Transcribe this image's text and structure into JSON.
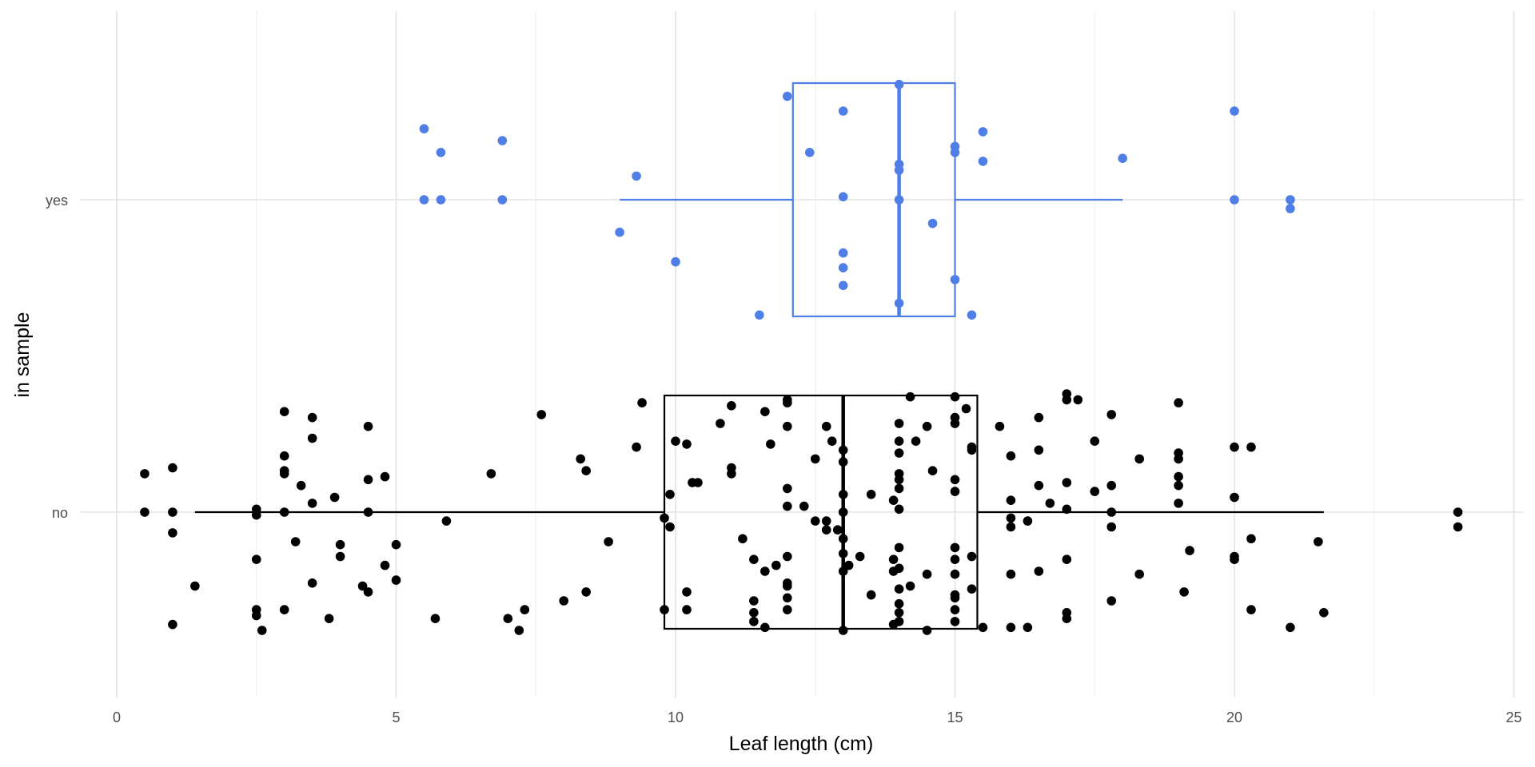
{
  "chart_data": {
    "type": "boxplot-jitter",
    "xlabel": "Leaf length (cm)",
    "ylabel": "in sample",
    "xlim": [
      0,
      25
    ],
    "x_ticks": [
      0,
      5,
      10,
      15,
      20,
      25
    ],
    "categories": [
      "no",
      "yes"
    ],
    "grid": true,
    "colors": {
      "no": "#000000",
      "yes": "#4f7fe6"
    },
    "boxes": [
      {
        "category": "no",
        "whisker_low": 1.4,
        "q1": 9.8,
        "median": 13.0,
        "q3": 15.4,
        "whisker_high": 21.6
      },
      {
        "category": "yes",
        "whisker_low": 9.0,
        "q1": 12.1,
        "median": 14.0,
        "q3": 15.0,
        "whisker_high": 18.0
      }
    ],
    "points": {
      "yes": [
        {
          "x": 5.5,
          "j": 0.24
        },
        {
          "x": 5.5,
          "j": 0.0
        },
        {
          "x": 5.8,
          "j": 0.16
        },
        {
          "x": 5.8,
          "j": 0.0
        },
        {
          "x": 6.9,
          "j": 0.2
        },
        {
          "x": 6.9,
          "j": 0.0
        },
        {
          "x": 9.0,
          "j": -0.11
        },
        {
          "x": 9.3,
          "j": 0.08
        },
        {
          "x": 10.0,
          "j": -0.21
        },
        {
          "x": 11.5,
          "j": -0.39
        },
        {
          "x": 12.0,
          "j": 0.35
        },
        {
          "x": 12.4,
          "j": 0.16
        },
        {
          "x": 13.0,
          "j": 0.3
        },
        {
          "x": 13.0,
          "j": 0.01
        },
        {
          "x": 13.0,
          "j": -0.18
        },
        {
          "x": 13.0,
          "j": -0.23
        },
        {
          "x": 13.0,
          "j": -0.29
        },
        {
          "x": 14.0,
          "j": 0.39
        },
        {
          "x": 14.0,
          "j": 0.12
        },
        {
          "x": 14.0,
          "j": 0.1
        },
        {
          "x": 14.0,
          "j": 0.0
        },
        {
          "x": 14.0,
          "j": -0.35
        },
        {
          "x": 14.6,
          "j": -0.08
        },
        {
          "x": 15.0,
          "j": 0.18
        },
        {
          "x": 15.0,
          "j": 0.16
        },
        {
          "x": 15.0,
          "j": -0.27
        },
        {
          "x": 15.3,
          "j": -0.39
        },
        {
          "x": 15.5,
          "j": 0.23
        },
        {
          "x": 15.5,
          "j": 0.13
        },
        {
          "x": 18.0,
          "j": 0.14
        },
        {
          "x": 20.0,
          "j": 0.3
        },
        {
          "x": 20.0,
          "j": 0.0
        },
        {
          "x": 21.0,
          "j": 0.0
        },
        {
          "x": 21.0,
          "j": -0.03
        }
      ],
      "no": [
        {
          "x": 0.5,
          "j": 0.13
        },
        {
          "x": 0.5,
          "j": 0.0
        },
        {
          "x": 1.0,
          "j": 0.15
        },
        {
          "x": 1.0,
          "j": 0.0
        },
        {
          "x": 1.0,
          "j": -0.07
        },
        {
          "x": 1.0,
          "j": -0.38
        },
        {
          "x": 1.4,
          "j": -0.25
        },
        {
          "x": 2.5,
          "j": 0.01
        },
        {
          "x": 2.5,
          "j": -0.01
        },
        {
          "x": 2.5,
          "j": -0.16
        },
        {
          "x": 2.5,
          "j": -0.33
        },
        {
          "x": 2.5,
          "j": -0.35
        },
        {
          "x": 2.6,
          "j": -0.4
        },
        {
          "x": 3.0,
          "j": 0.34
        },
        {
          "x": 3.0,
          "j": 0.19
        },
        {
          "x": 3.0,
          "j": 0.14
        },
        {
          "x": 3.0,
          "j": 0.13
        },
        {
          "x": 3.0,
          "j": 0.0
        },
        {
          "x": 3.0,
          "j": -0.33
        },
        {
          "x": 3.2,
          "j": -0.1
        },
        {
          "x": 3.3,
          "j": 0.09
        },
        {
          "x": 3.5,
          "j": 0.32
        },
        {
          "x": 3.5,
          "j": 0.25
        },
        {
          "x": 3.5,
          "j": 0.03
        },
        {
          "x": 3.5,
          "j": -0.24
        },
        {
          "x": 3.8,
          "j": -0.36
        },
        {
          "x": 3.9,
          "j": 0.05
        },
        {
          "x": 4.0,
          "j": -0.11
        },
        {
          "x": 4.0,
          "j": -0.15
        },
        {
          "x": 4.4,
          "j": -0.25
        },
        {
          "x": 4.5,
          "j": 0.29
        },
        {
          "x": 4.5,
          "j": 0.11
        },
        {
          "x": 4.5,
          "j": 0.0
        },
        {
          "x": 4.5,
          "j": -0.27
        },
        {
          "x": 4.8,
          "j": 0.12
        },
        {
          "x": 4.8,
          "j": -0.18
        },
        {
          "x": 5.0,
          "j": -0.11
        },
        {
          "x": 5.0,
          "j": -0.23
        },
        {
          "x": 5.7,
          "j": -0.36
        },
        {
          "x": 5.9,
          "j": -0.03
        },
        {
          "x": 6.7,
          "j": 0.13
        },
        {
          "x": 7.0,
          "j": -0.36
        },
        {
          "x": 7.2,
          "j": -0.4
        },
        {
          "x": 7.3,
          "j": -0.33
        },
        {
          "x": 7.6,
          "j": 0.33
        },
        {
          "x": 8.0,
          "j": -0.3
        },
        {
          "x": 8.3,
          "j": 0.18
        },
        {
          "x": 8.4,
          "j": 0.14
        },
        {
          "x": 8.4,
          "j": -0.27
        },
        {
          "x": 8.8,
          "j": -0.1
        },
        {
          "x": 9.3,
          "j": 0.22
        },
        {
          "x": 9.4,
          "j": 0.37
        },
        {
          "x": 9.8,
          "j": -0.33
        },
        {
          "x": 9.8,
          "j": -0.02
        },
        {
          "x": 9.9,
          "j": 0.06
        },
        {
          "x": 10.0,
          "j": 0.24
        },
        {
          "x": 9.9,
          "j": -0.05
        },
        {
          "x": 10.2,
          "j": 0.23
        },
        {
          "x": 10.2,
          "j": -0.27
        },
        {
          "x": 10.2,
          "j": -0.33
        },
        {
          "x": 10.3,
          "j": 0.1
        },
        {
          "x": 10.4,
          "j": 0.1
        },
        {
          "x": 10.8,
          "j": 0.3
        },
        {
          "x": 11.0,
          "j": 0.36
        },
        {
          "x": 11.0,
          "j": 0.15
        },
        {
          "x": 11.0,
          "j": 0.13
        },
        {
          "x": 11.2,
          "j": -0.09
        },
        {
          "x": 11.4,
          "j": -0.16
        },
        {
          "x": 11.4,
          "j": -0.3
        },
        {
          "x": 11.4,
          "j": -0.34
        },
        {
          "x": 11.4,
          "j": -0.37
        },
        {
          "x": 11.6,
          "j": 0.34
        },
        {
          "x": 11.6,
          "j": -0.2
        },
        {
          "x": 11.6,
          "j": -0.39
        },
        {
          "x": 11.7,
          "j": 0.23
        },
        {
          "x": 11.8,
          "j": -0.18
        },
        {
          "x": 12.0,
          "j": 0.38
        },
        {
          "x": 12.0,
          "j": 0.37
        },
        {
          "x": 12.0,
          "j": 0.29
        },
        {
          "x": 12.0,
          "j": 0.08
        },
        {
          "x": 12.0,
          "j": 0.02
        },
        {
          "x": 12.0,
          "j": -0.15
        },
        {
          "x": 12.0,
          "j": -0.24
        },
        {
          "x": 12.0,
          "j": -0.25
        },
        {
          "x": 12.0,
          "j": -0.29
        },
        {
          "x": 12.0,
          "j": -0.33
        },
        {
          "x": 12.3,
          "j": 0.02
        },
        {
          "x": 12.5,
          "j": 0.18
        },
        {
          "x": 12.5,
          "j": -0.03
        },
        {
          "x": 12.7,
          "j": 0.29
        },
        {
          "x": 12.8,
          "j": 0.24
        },
        {
          "x": 12.7,
          "j": -0.03
        },
        {
          "x": 12.7,
          "j": -0.06
        },
        {
          "x": 12.9,
          "j": -0.06
        },
        {
          "x": 13.0,
          "j": 0.21
        },
        {
          "x": 13.0,
          "j": 0.17
        },
        {
          "x": 13.0,
          "j": 0.06
        },
        {
          "x": 13.0,
          "j": 0.0
        },
        {
          "x": 13.0,
          "j": -0.09
        },
        {
          "x": 13.0,
          "j": -0.14
        },
        {
          "x": 13.0,
          "j": -0.2
        },
        {
          "x": 13.0,
          "j": -0.4
        },
        {
          "x": 13.1,
          "j": -0.18
        },
        {
          "x": 13.3,
          "j": -0.15
        },
        {
          "x": 13.5,
          "j": -0.28
        },
        {
          "x": 13.5,
          "j": 0.06
        },
        {
          "x": 13.9,
          "j": 0.04
        },
        {
          "x": 13.9,
          "j": -0.16
        },
        {
          "x": 13.9,
          "j": -0.2
        },
        {
          "x": 13.9,
          "j": -0.38
        },
        {
          "x": 14.0,
          "j": 0.3
        },
        {
          "x": 14.0,
          "j": 0.24
        },
        {
          "x": 14.0,
          "j": 0.2
        },
        {
          "x": 14.0,
          "j": 0.13
        },
        {
          "x": 14.0,
          "j": 0.11
        },
        {
          "x": 14.0,
          "j": 0.08
        },
        {
          "x": 14.0,
          "j": 0.01
        },
        {
          "x": 14.0,
          "j": -0.12
        },
        {
          "x": 14.0,
          "j": -0.19
        },
        {
          "x": 14.0,
          "j": -0.26
        },
        {
          "x": 14.0,
          "j": -0.31
        },
        {
          "x": 14.0,
          "j": -0.34
        },
        {
          "x": 14.0,
          "j": -0.37
        },
        {
          "x": 14.2,
          "j": 0.39
        },
        {
          "x": 14.2,
          "j": -0.25
        },
        {
          "x": 14.3,
          "j": 0.24
        },
        {
          "x": 14.5,
          "j": 0.29
        },
        {
          "x": 14.5,
          "j": -0.21
        },
        {
          "x": 14.5,
          "j": -0.4
        },
        {
          "x": 14.6,
          "j": 0.14
        },
        {
          "x": 15.0,
          "j": 0.39
        },
        {
          "x": 15.0,
          "j": 0.32
        },
        {
          "x": 15.0,
          "j": 0.3
        },
        {
          "x": 15.0,
          "j": 0.11
        },
        {
          "x": 15.0,
          "j": 0.07
        },
        {
          "x": 15.0,
          "j": -0.12
        },
        {
          "x": 15.0,
          "j": -0.16
        },
        {
          "x": 15.0,
          "j": -0.21
        },
        {
          "x": 15.0,
          "j": -0.28
        },
        {
          "x": 15.0,
          "j": -0.29
        },
        {
          "x": 15.0,
          "j": -0.33
        },
        {
          "x": 15.0,
          "j": -0.37
        },
        {
          "x": 15.2,
          "j": 0.35
        },
        {
          "x": 15.3,
          "j": 0.22
        },
        {
          "x": 15.3,
          "j": -0.26
        },
        {
          "x": 15.3,
          "j": 0.21
        },
        {
          "x": 15.3,
          "j": -0.15
        },
        {
          "x": 15.5,
          "j": -0.39
        },
        {
          "x": 15.8,
          "j": 0.29
        },
        {
          "x": 16.0,
          "j": 0.19
        },
        {
          "x": 16.0,
          "j": 0.04
        },
        {
          "x": 16.0,
          "j": -0.02
        },
        {
          "x": 16.0,
          "j": -0.05
        },
        {
          "x": 16.0,
          "j": -0.21
        },
        {
          "x": 16.0,
          "j": -0.39
        },
        {
          "x": 16.3,
          "j": -0.03
        },
        {
          "x": 16.3,
          "j": -0.39
        },
        {
          "x": 16.5,
          "j": 0.32
        },
        {
          "x": 16.5,
          "j": 0.21
        },
        {
          "x": 16.5,
          "j": 0.09
        },
        {
          "x": 16.5,
          "j": -0.2
        },
        {
          "x": 16.7,
          "j": 0.03
        },
        {
          "x": 17.0,
          "j": 0.4
        },
        {
          "x": 17.0,
          "j": 0.38
        },
        {
          "x": 17.0,
          "j": 0.1
        },
        {
          "x": 17.0,
          "j": 0.01
        },
        {
          "x": 17.0,
          "j": -0.16
        },
        {
          "x": 17.0,
          "j": -0.34
        },
        {
          "x": 17.0,
          "j": -0.36
        },
        {
          "x": 17.2,
          "j": 0.38
        },
        {
          "x": 17.5,
          "j": 0.24
        },
        {
          "x": 17.5,
          "j": 0.07
        },
        {
          "x": 17.8,
          "j": 0.33
        },
        {
          "x": 17.8,
          "j": 0.09
        },
        {
          "x": 17.8,
          "j": 0.0
        },
        {
          "x": 17.8,
          "j": -0.05
        },
        {
          "x": 17.8,
          "j": -0.3
        },
        {
          "x": 18.3,
          "j": 0.18
        },
        {
          "x": 18.3,
          "j": -0.21
        },
        {
          "x": 19.0,
          "j": 0.37
        },
        {
          "x": 19.0,
          "j": 0.2
        },
        {
          "x": 19.0,
          "j": 0.18
        },
        {
          "x": 19.0,
          "j": 0.12
        },
        {
          "x": 19.0,
          "j": 0.03
        },
        {
          "x": 19.0,
          "j": 0.09
        },
        {
          "x": 19.1,
          "j": -0.27
        },
        {
          "x": 19.2,
          "j": -0.13
        },
        {
          "x": 20.0,
          "j": 0.22
        },
        {
          "x": 20.0,
          "j": 0.05
        },
        {
          "x": 20.0,
          "j": -0.15
        },
        {
          "x": 20.0,
          "j": -0.16
        },
        {
          "x": 20.3,
          "j": 0.22
        },
        {
          "x": 20.3,
          "j": -0.09
        },
        {
          "x": 20.3,
          "j": -0.33
        },
        {
          "x": 21.0,
          "j": -0.39
        },
        {
          "x": 21.5,
          "j": -0.1
        },
        {
          "x": 21.6,
          "j": -0.34
        },
        {
          "x": 24.0,
          "j": 0.0
        },
        {
          "x": 24.0,
          "j": -0.05
        }
      ]
    }
  }
}
